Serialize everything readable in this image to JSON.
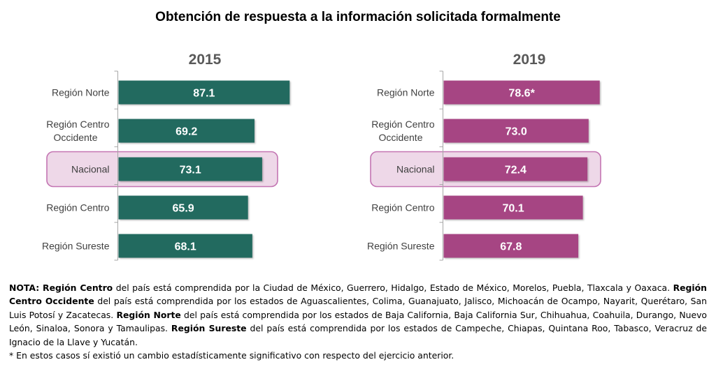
{
  "title": "Obtención de respuesta a la información solicitada formalmente",
  "chart_data": [
    {
      "type": "bar",
      "orientation": "horizontal",
      "title": "2015",
      "categories": [
        "Región Norte",
        "Región Centro Occidente",
        "Nacional",
        "Región Centro",
        "Región Sureste"
      ],
      "category_lines": [
        [
          "Región Norte"
        ],
        [
          "Región Centro",
          "Occidente"
        ],
        [
          "Nacional"
        ],
        [
          "Región Centro"
        ],
        [
          "Región Sureste"
        ]
      ],
      "values": [
        87.1,
        69.2,
        73.1,
        65.9,
        68.1
      ],
      "data_labels": [
        "87.1",
        "69.2",
        "73.1",
        "65.9",
        "68.1"
      ],
      "highlighted_category": "Nacional",
      "color": "#236b5e",
      "xlim": [
        0,
        87.1
      ],
      "xlabel": "",
      "ylabel": "",
      "grid": false,
      "legend": "none"
    },
    {
      "type": "bar",
      "orientation": "horizontal",
      "title": "2019",
      "categories": [
        "Región Norte",
        "Región Centro Occidente",
        "Nacional",
        "Región Centro",
        "Región Sureste"
      ],
      "category_lines": [
        [
          "Región Norte"
        ],
        [
          "Región Centro",
          "Occidente"
        ],
        [
          "Nacional"
        ],
        [
          "Región Centro"
        ],
        [
          "Región Sureste"
        ]
      ],
      "values": [
        78.6,
        73.0,
        72.4,
        70.1,
        67.8
      ],
      "data_labels": [
        "78.6*",
        "73.0",
        "72.4",
        "70.1",
        "67.8"
      ],
      "highlighted_category": "Nacional",
      "color": "#a64583",
      "xlim": [
        0,
        78.6
      ],
      "xlabel": "",
      "ylabel": "",
      "grid": false,
      "legend": "none"
    }
  ],
  "colors": {
    "highlight_fill": "#eed8e8",
    "highlight_border": "#c374b2",
    "axis": "#a6a6a6",
    "category_text": "#404040",
    "year_text": "#595959"
  },
  "note": {
    "segments": [
      {
        "b": true,
        "t": "NOTA: Región Centro"
      },
      {
        "b": false,
        "t": " del país está comprendida por la Ciudad de México, Guerrero, Hidalgo, Estado de México, Morelos, Puebla, Tlaxcala y Oaxaca. "
      },
      {
        "b": true,
        "t": "Región Centro Occidente"
      },
      {
        "b": false,
        "t": " del país está comprendida por los estados de Aguascalientes, Colima, Guanajuato, Jalisco, Michoacán de Ocampo, Nayarit, Querétaro, San Luis Potosí y Zacatecas. "
      },
      {
        "b": true,
        "t": "Región Norte"
      },
      {
        "b": false,
        "t": " del país está comprendida por los estados de Baja California, Baja California Sur, Chihuahua, Coahuila, Durango, Nuevo León, Sinaloa, Sonora y Tamaulipas. "
      },
      {
        "b": true,
        "t": "Región Sureste"
      },
      {
        "b": false,
        "t": " del país está comprendida por los estados de Campeche, Chiapas, Quintana Roo, Tabasco, Veracruz de Ignacio de la Llave y Yucatán."
      }
    ],
    "footnote": "* En estos casos sí existió un cambio estadísticamente significativo con respecto del ejercicio anterior."
  }
}
